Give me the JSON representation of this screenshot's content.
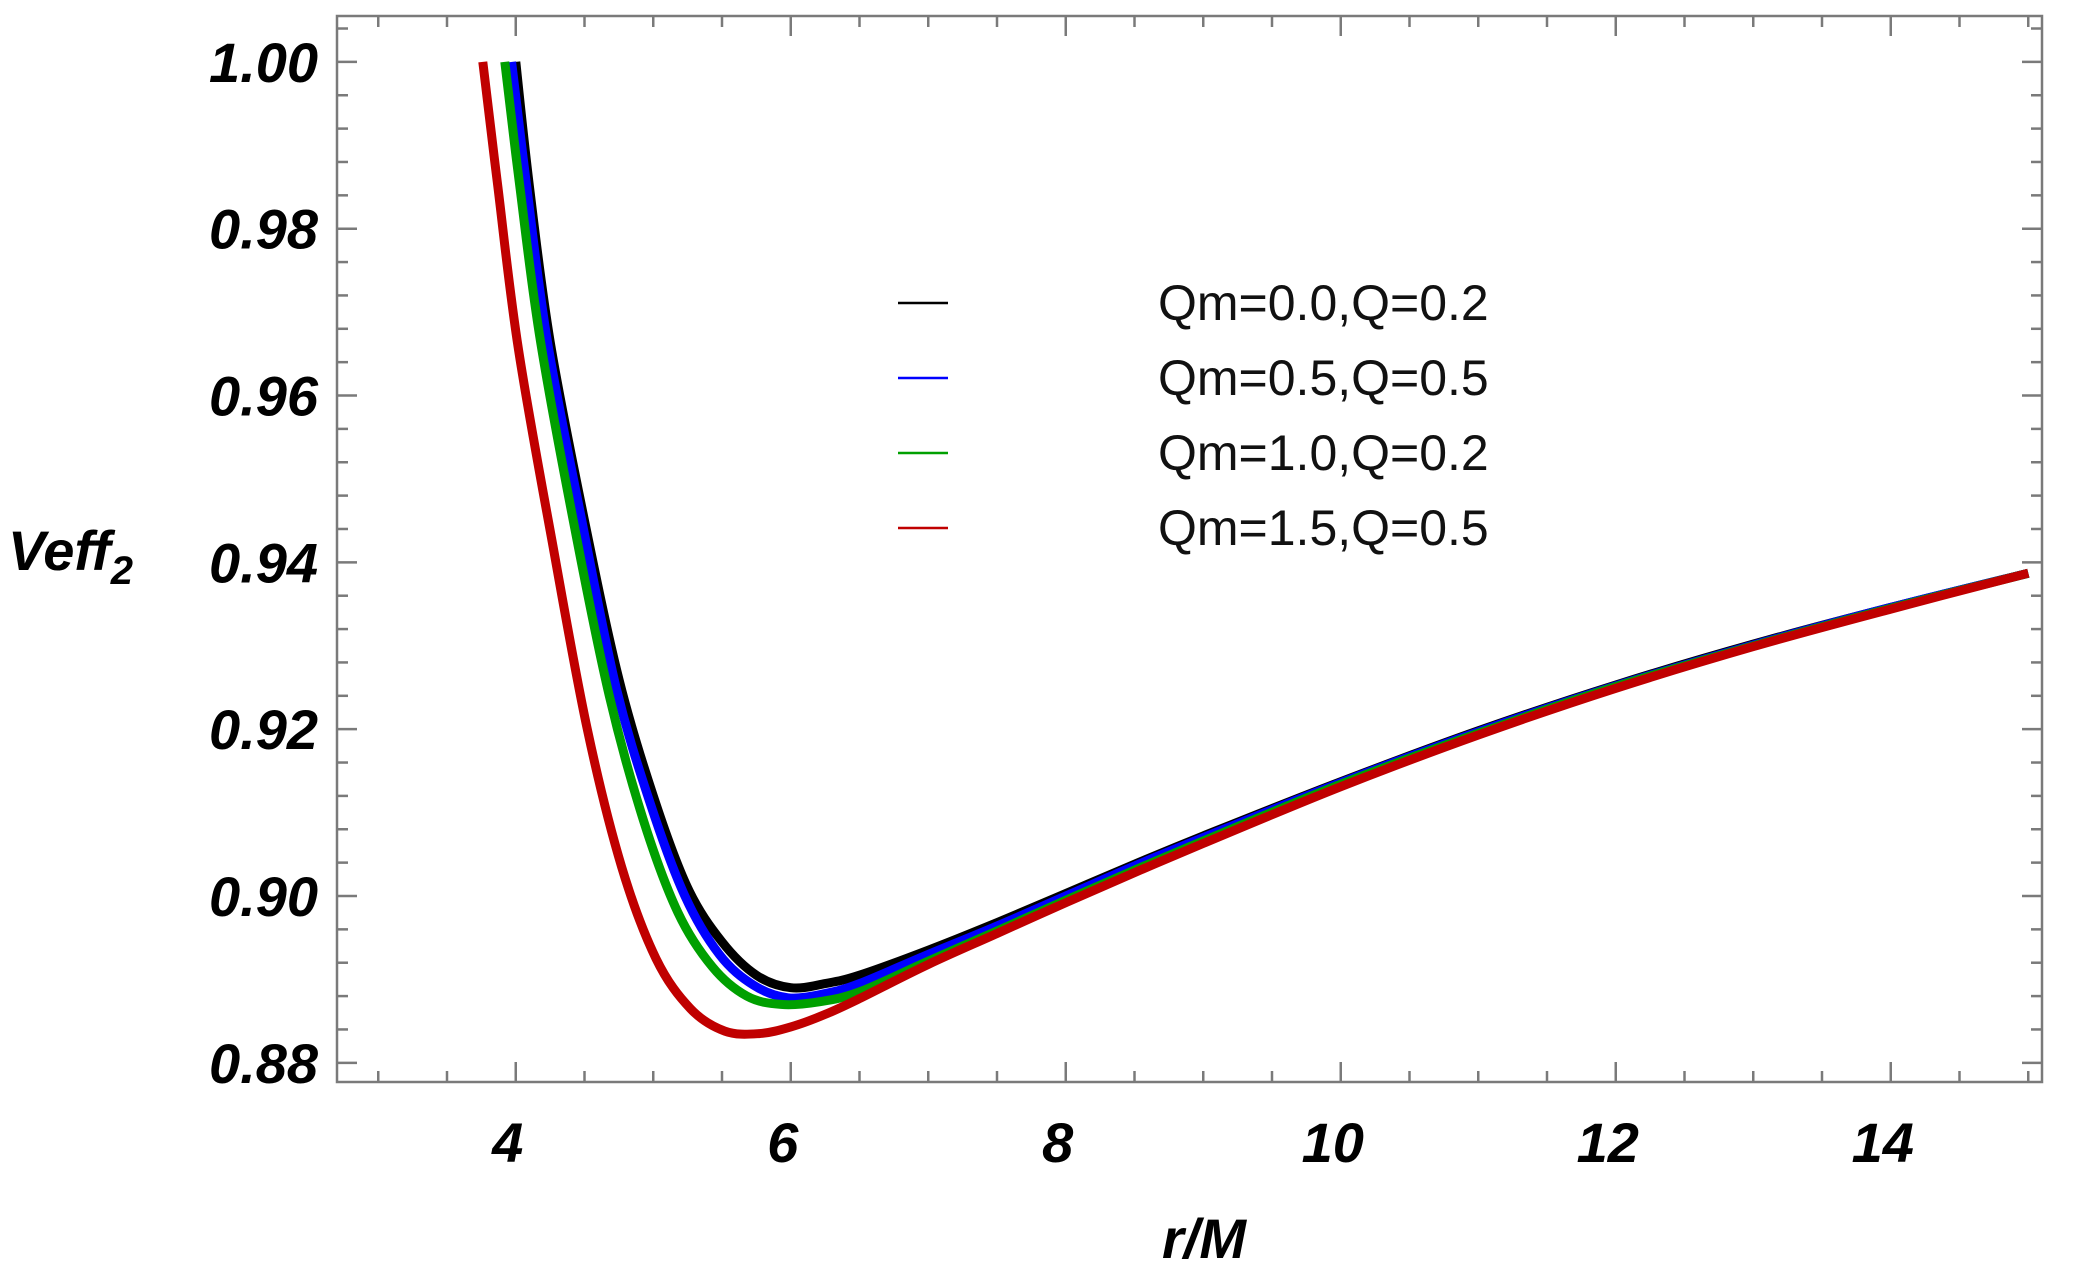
{
  "chart_data": {
    "type": "line",
    "xlabel": "r/M",
    "ylabel_main": "Veff",
    "ylabel_sub": "2",
    "xlim": [
      2.7,
      15.1
    ],
    "ylim": [
      0.8777,
      1.0055
    ],
    "x_ticks": [
      4,
      6,
      8,
      10,
      12,
      14
    ],
    "x_tick_labels": [
      "4",
      "6",
      "8",
      "10",
      "12",
      "14"
    ],
    "y_ticks": [
      0.88,
      0.9,
      0.92,
      0.94,
      0.96,
      0.98,
      1.0
    ],
    "y_tick_labels": [
      "0.88",
      "0.90",
      "0.92",
      "0.94",
      "0.96",
      "0.98",
      "1.00"
    ],
    "legend_position": "upper-right",
    "grid": false,
    "series": [
      {
        "name": "Qm=0.0,Q=0.2",
        "color": "#000000",
        "x": [
          4.0,
          4.1,
          4.25,
          4.5,
          4.75,
          5.0,
          5.25,
          5.5,
          5.75,
          6.0,
          6.25,
          6.5,
          7.0,
          7.5,
          8.0,
          8.5,
          9.0,
          10.0,
          11.0,
          12.0,
          13.0,
          14.0,
          15.0
        ],
        "y": [
          1.0,
          0.985,
          0.9665,
          0.945,
          0.926,
          0.912,
          0.901,
          0.8945,
          0.8905,
          0.889,
          0.8895,
          0.8905,
          0.8935,
          0.8968,
          0.9003,
          0.9038,
          0.9072,
          0.9137,
          0.9198,
          0.9253,
          0.9302,
          0.9346,
          0.9387
        ]
      },
      {
        "name": "Qm=0.5,Q=0.5",
        "color": "#0000ff",
        "x": [
          3.97,
          4.08,
          4.23,
          4.48,
          4.73,
          4.98,
          5.23,
          5.48,
          5.73,
          5.98,
          6.25,
          6.5,
          7.0,
          7.5,
          8.0,
          8.5,
          9.0,
          10.0,
          11.0,
          12.0,
          13.0,
          14.0,
          15.0
        ],
        "y": [
          1.0,
          0.985,
          0.9665,
          0.945,
          0.925,
          0.911,
          0.9,
          0.893,
          0.8893,
          0.8878,
          0.8883,
          0.8895,
          0.893,
          0.8964,
          0.9,
          0.9036,
          0.907,
          0.9136,
          0.9197,
          0.9252,
          0.9301,
          0.9346,
          0.9387
        ]
      },
      {
        "name": "Qm=1.0,Q=0.2",
        "color": "#00a000",
        "x": [
          3.92,
          4.03,
          4.18,
          4.43,
          4.68,
          4.93,
          5.18,
          5.43,
          5.68,
          5.93,
          6.2,
          6.5,
          7.0,
          7.5,
          8.0,
          8.5,
          9.0,
          10.0,
          11.0,
          12.0,
          13.0,
          14.0,
          15.0
        ],
        "y": [
          1.0,
          0.985,
          0.9665,
          0.944,
          0.924,
          0.909,
          0.898,
          0.8915,
          0.888,
          0.887,
          0.8873,
          0.8885,
          0.8922,
          0.8958,
          0.8995,
          0.9031,
          0.9066,
          0.9134,
          0.9195,
          0.9251,
          0.93,
          0.9345,
          0.9387
        ]
      },
      {
        "name": "Qm=1.5,Q=0.5",
        "color": "#c00000",
        "x": [
          3.76,
          3.87,
          4.02,
          4.27,
          4.52,
          4.77,
          5.02,
          5.27,
          5.52,
          5.77,
          6.0,
          6.25,
          6.5,
          7.0,
          7.5,
          8.0,
          8.5,
          9.0,
          10.0,
          11.0,
          12.0,
          13.0,
          14.0,
          15.0
        ],
        "y": [
          1.0,
          0.985,
          0.9655,
          0.942,
          0.92,
          0.9035,
          0.8925,
          0.8865,
          0.8838,
          0.8835,
          0.8843,
          0.8858,
          0.8877,
          0.8918,
          0.8955,
          0.8992,
          0.9028,
          0.9063,
          0.9131,
          0.9193,
          0.9249,
          0.9299,
          0.9344,
          0.9387
        ]
      }
    ]
  }
}
